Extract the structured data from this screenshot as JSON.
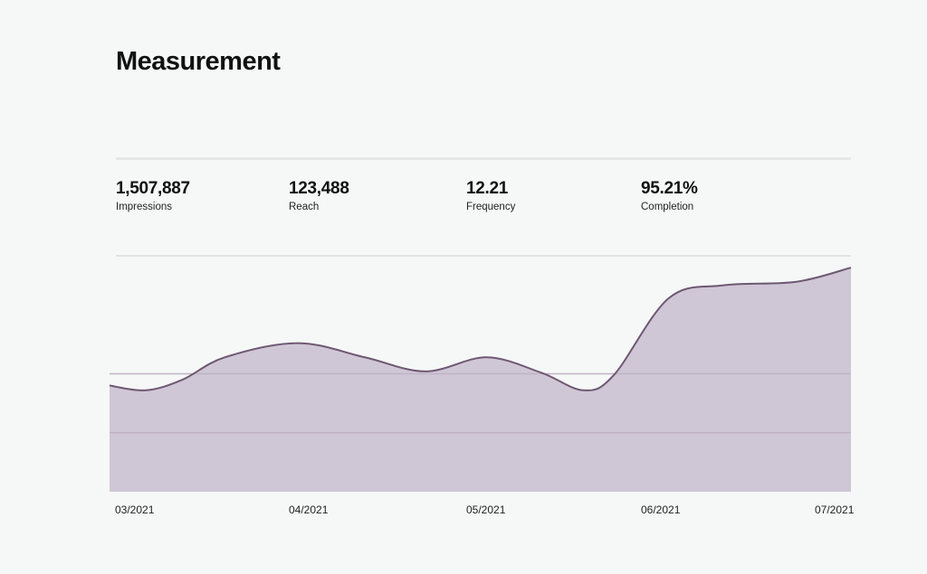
{
  "header": {
    "title": "Measurement"
  },
  "metrics": [
    {
      "value": "1,507,887",
      "label": "Impressions"
    },
    {
      "value": "123,488",
      "label": "Reach"
    },
    {
      "value": "12.21",
      "label": "Frequency"
    },
    {
      "value": "95.21%",
      "label": "Completion"
    }
  ],
  "chart_data": {
    "type": "area",
    "title": "",
    "xlabel": "",
    "ylabel": "",
    "x_tick_labels": [
      "03/2021",
      "04/2021",
      "05/2021",
      "06/2021",
      "07/2021"
    ],
    "xlim": [
      "2021-03-01",
      "2021-07-01"
    ],
    "ylim": [
      0,
      100
    ],
    "y_axis_labels_shown": false,
    "gridlines_y": [
      25,
      50,
      100
    ],
    "grid": true,
    "legend": "none",
    "colors": {
      "fill": "#d0c7d6",
      "line": "#6e5873",
      "grid": "#e2e2e4"
    },
    "series": [
      {
        "x": [
          "2021-03-01",
          "2021-03-07",
          "2021-03-13",
          "2021-03-20",
          "2021-04-01",
          "2021-04-12",
          "2021-04-22",
          "2021-05-02",
          "2021-05-11",
          "2021-05-18",
          "2021-05-23",
          "2021-06-01",
          "2021-06-10",
          "2021-06-22",
          "2021-07-01"
        ],
        "y": [
          45,
          43,
          47.5,
          57,
          63,
          57,
          51,
          57,
          50.5,
          43,
          49.5,
          82,
          87.5,
          89,
          95
        ]
      }
    ]
  }
}
